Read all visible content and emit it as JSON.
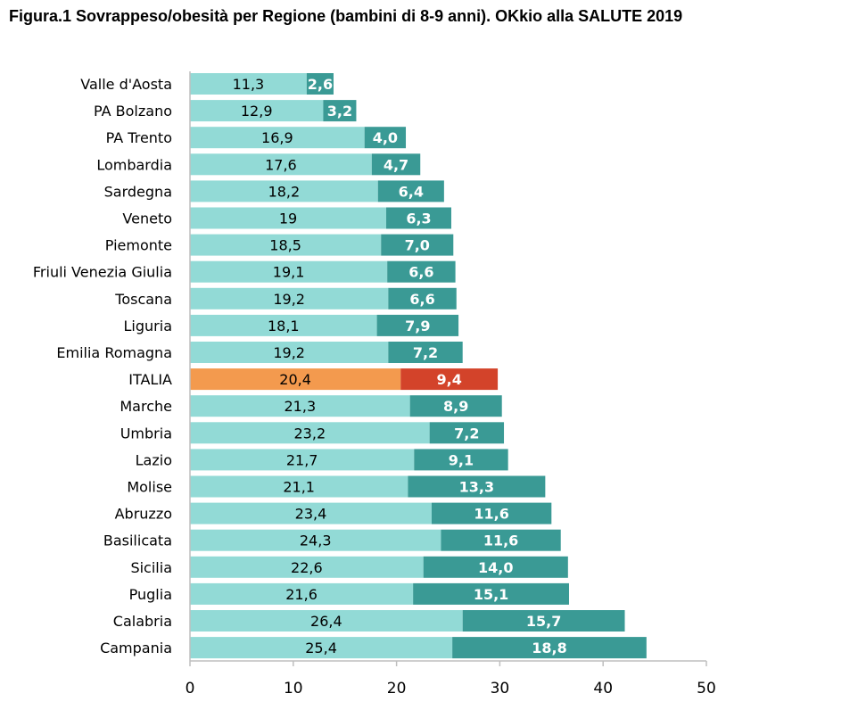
{
  "chart_data": {
    "type": "bar",
    "orientation": "horizontal",
    "stacked": true,
    "title": "Figura.1 Sovrappeso/obesità per Regione (bambini di 8-9 anni). OKkio alla SALUTE 2019",
    "xlabel": "",
    "ylabel": "",
    "xlim": [
      0,
      50
    ],
    "xticks": [
      "0",
      "10",
      "20",
      "30",
      "40",
      "50"
    ],
    "grid": false,
    "categories": [
      "Valle d'Aosta",
      "PA Bolzano",
      "PA Trento",
      "Lombardia",
      "Sardegna",
      "Veneto",
      "Piemonte",
      "Friuli Venezia Giulia",
      "Toscana",
      "Liguria",
      "Emilia Romagna",
      "ITALIA",
      "Marche",
      "Umbria",
      "Lazio",
      "Molise",
      "Abruzzo",
      "Basilicata",
      "Sicilia",
      "Puglia",
      "Calabria",
      "Campania"
    ],
    "series": [
      {
        "values": [
          11.3,
          12.9,
          16.9,
          17.6,
          18.2,
          19,
          18.5,
          19.1,
          19.2,
          18.1,
          19.2,
          20.4,
          21.3,
          23.2,
          21.7,
          21.1,
          23.4,
          24.3,
          22.6,
          21.6,
          26.4,
          25.4
        ],
        "labels": [
          "11,3",
          "12,9",
          "16,9",
          "17,6",
          "18,2",
          "19",
          "18,5",
          "19,1",
          "19,2",
          "18,1",
          "19,2",
          "20,4",
          "21,3",
          "23,2",
          "21,7",
          "21,1",
          "23,4",
          "24,3",
          "22,6",
          "21,6",
          "26,4",
          "25,4"
        ]
      },
      {
        "values": [
          2.6,
          3.2,
          4.0,
          4.7,
          6.4,
          6.3,
          7.0,
          6.6,
          6.6,
          7.9,
          7.2,
          9.4,
          8.9,
          7.2,
          9.1,
          13.3,
          11.6,
          11.6,
          14.0,
          15.1,
          15.7,
          18.8
        ],
        "labels": [
          "2,6",
          "3,2",
          "4,0",
          "4,7",
          "6,4",
          "6,3",
          "7,0",
          "6,6",
          "6,6",
          "7,9",
          "7,2",
          "9,4",
          "8,9",
          "7,2",
          "9,1",
          "13,3",
          "11,6",
          "11,6",
          "14,0",
          "15,1",
          "15,7",
          "18,8"
        ]
      }
    ],
    "highlight_category": "ITALIA",
    "colors": {
      "series1": "#92DAD6",
      "series2": "#3A9A95",
      "highlight_series1": "#F39A4E",
      "highlight_series2": "#D3432A",
      "axis": "#BFBFBF"
    }
  }
}
